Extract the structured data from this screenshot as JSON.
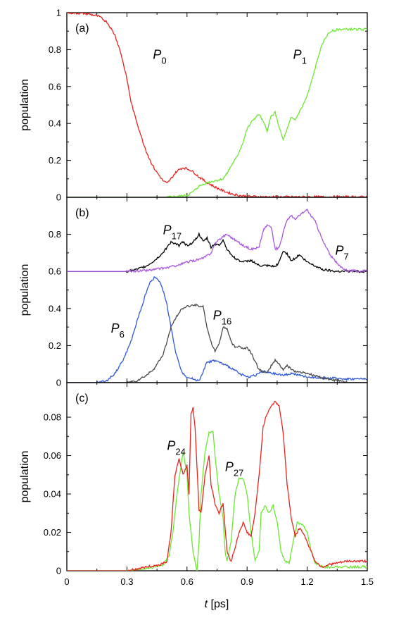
{
  "chart_data": [
    {
      "panel": "(a)",
      "type": "line",
      "xlabel": "",
      "ylabel": "population",
      "xlim": [
        0,
        1.5
      ],
      "ylim": [
        0,
        1
      ],
      "yticks": [
        0,
        0.2,
        0.4,
        0.6,
        0.8,
        1
      ],
      "ytick_labels": [
        "0",
        "0.2",
        "0.4",
        "0.6",
        "0.8",
        "1"
      ],
      "series": [
        {
          "name": "P0",
          "label_main": "P",
          "label_sub": "0",
          "color": "#e8231f",
          "label_pos": [
            0.43,
            0.75
          ],
          "x": [
            0,
            0.1,
            0.16,
            0.2,
            0.24,
            0.27,
            0.3,
            0.32,
            0.34,
            0.36,
            0.38,
            0.4,
            0.42,
            0.44,
            0.46,
            0.48,
            0.5,
            0.52,
            0.54,
            0.56,
            0.58,
            0.6,
            0.62,
            0.64,
            0.66,
            0.7,
            0.74,
            0.78,
            0.82,
            0.86,
            0.9,
            1.0,
            1.5
          ],
          "y": [
            1.0,
            0.995,
            0.98,
            0.95,
            0.88,
            0.78,
            0.64,
            0.52,
            0.44,
            0.37,
            0.3,
            0.24,
            0.19,
            0.15,
            0.12,
            0.09,
            0.075,
            0.1,
            0.13,
            0.15,
            0.16,
            0.155,
            0.145,
            0.13,
            0.11,
            0.08,
            0.055,
            0.035,
            0.02,
            0.01,
            0.005,
            0.002,
            0.002
          ]
        },
        {
          "name": "P1",
          "label_main": "P",
          "label_sub": "1",
          "color": "#6be830",
          "label_pos": [
            1.13,
            0.75
          ],
          "x": [
            0,
            0.4,
            0.5,
            0.55,
            0.6,
            0.63,
            0.66,
            0.7,
            0.74,
            0.78,
            0.8,
            0.82,
            0.85,
            0.88,
            0.9,
            0.93,
            0.96,
            0.98,
            1.0,
            1.02,
            1.04,
            1.06,
            1.08,
            1.1,
            1.12,
            1.14,
            1.16,
            1.18,
            1.2,
            1.22,
            1.24,
            1.26,
            1.28,
            1.3,
            1.32,
            1.36,
            1.4,
            1.5
          ],
          "y": [
            0,
            0,
            0,
            0.005,
            0.01,
            0.03,
            0.06,
            0.08,
            0.09,
            0.1,
            0.13,
            0.17,
            0.22,
            0.3,
            0.37,
            0.42,
            0.45,
            0.41,
            0.36,
            0.44,
            0.46,
            0.38,
            0.31,
            0.37,
            0.43,
            0.42,
            0.46,
            0.5,
            0.55,
            0.62,
            0.7,
            0.78,
            0.84,
            0.88,
            0.9,
            0.91,
            0.91,
            0.91
          ]
        }
      ]
    },
    {
      "panel": "(b)",
      "type": "line",
      "xlabel": "",
      "ylabel": "population",
      "xlim": [
        0,
        1.5
      ],
      "ylim": [
        0,
        1.0
      ],
      "yticks": [
        0,
        0.2,
        0.4,
        0.6,
        0.8
      ],
      "ytick_labels": [
        "0",
        "0.2",
        "0.4",
        "0.6",
        "0.8"
      ],
      "note": "Upper curves P17 and P7 are drawn with a vertical offset of 0.6",
      "offset_upper": 0.6,
      "series": [
        {
          "name": "P17",
          "label_main": "P",
          "label_sub": "17",
          "color": "#000000",
          "offset": 0.6,
          "label_pos": [
            0.48,
            0.8
          ],
          "x": [
            0,
            0.3,
            0.35,
            0.4,
            0.44,
            0.48,
            0.5,
            0.52,
            0.54,
            0.56,
            0.58,
            0.6,
            0.62,
            0.64,
            0.66,
            0.68,
            0.7,
            0.72,
            0.74,
            0.76,
            0.78,
            0.8,
            0.84,
            0.88,
            0.92,
            0.96,
            1.0,
            1.04,
            1.06,
            1.08,
            1.1,
            1.12,
            1.14,
            1.16,
            1.18,
            1.2,
            1.24,
            1.28,
            1.34,
            1.5
          ],
          "y": [
            0,
            0,
            0.01,
            0.03,
            0.06,
            0.1,
            0.13,
            0.16,
            0.15,
            0.14,
            0.16,
            0.14,
            0.15,
            0.17,
            0.2,
            0.16,
            0.18,
            0.13,
            0.15,
            0.14,
            0.17,
            0.12,
            0.07,
            0.05,
            0.06,
            0.03,
            0.03,
            0.025,
            0.05,
            0.11,
            0.095,
            0.06,
            0.07,
            0.09,
            0.07,
            0.05,
            0.03,
            0.01,
            0.002,
            0
          ]
        },
        {
          "name": "P7",
          "label_main": "P",
          "label_sub": "7",
          "color": "#a855e0",
          "offset": 0.6,
          "label_pos": [
            1.34,
            0.69
          ],
          "x": [
            0,
            0.3,
            0.4,
            0.5,
            0.56,
            0.6,
            0.64,
            0.68,
            0.72,
            0.74,
            0.76,
            0.78,
            0.8,
            0.84,
            0.88,
            0.92,
            0.96,
            0.98,
            1.0,
            1.02,
            1.04,
            1.06,
            1.08,
            1.1,
            1.12,
            1.14,
            1.16,
            1.18,
            1.2,
            1.22,
            1.24,
            1.28,
            1.32,
            1.36,
            1.4,
            1.5
          ],
          "y": [
            0,
            0,
            0.005,
            0.02,
            0.035,
            0.05,
            0.06,
            0.07,
            0.1,
            0.15,
            0.17,
            0.19,
            0.2,
            0.17,
            0.14,
            0.12,
            0.13,
            0.22,
            0.25,
            0.24,
            0.12,
            0.13,
            0.21,
            0.28,
            0.3,
            0.28,
            0.3,
            0.32,
            0.33,
            0.3,
            0.27,
            0.16,
            0.08,
            0.03,
            0.005,
            0
          ]
        },
        {
          "name": "P6",
          "label_main": "P",
          "label_sub": "6",
          "color": "#2e58d8",
          "label_pos": [
            0.22,
            0.27
          ],
          "x": [
            0,
            0.15,
            0.2,
            0.24,
            0.28,
            0.32,
            0.35,
            0.38,
            0.4,
            0.42,
            0.44,
            0.46,
            0.48,
            0.5,
            0.52,
            0.54,
            0.56,
            0.58,
            0.6,
            0.63,
            0.66,
            0.68,
            0.7,
            0.74,
            0.78,
            0.82,
            0.86,
            0.9,
            0.94,
            0.98,
            1.02,
            1.08,
            1.12,
            1.2,
            1.3,
            1.4,
            1.5
          ],
          "y": [
            0,
            0,
            0.01,
            0.05,
            0.12,
            0.22,
            0.33,
            0.43,
            0.5,
            0.55,
            0.57,
            0.55,
            0.5,
            0.42,
            0.3,
            0.18,
            0.1,
            0.05,
            0.03,
            0.02,
            0.01,
            0.06,
            0.11,
            0.12,
            0.1,
            0.08,
            0.05,
            0.03,
            0.04,
            0.06,
            0.05,
            0.04,
            0.05,
            0.03,
            0.025,
            0.02,
            0.02
          ]
        },
        {
          "name": "P16",
          "label_main": "P",
          "label_sub": "16",
          "color": "#4a4a4a",
          "label_pos": [
            0.73,
            0.34
          ],
          "x": [
            0,
            0.3,
            0.35,
            0.4,
            0.44,
            0.48,
            0.5,
            0.52,
            0.54,
            0.56,
            0.58,
            0.6,
            0.64,
            0.68,
            0.7,
            0.72,
            0.74,
            0.76,
            0.78,
            0.8,
            0.82,
            0.84,
            0.86,
            0.88,
            0.9,
            0.92,
            0.96,
            1.0,
            1.02,
            1.04,
            1.06,
            1.08,
            1.1,
            1.14,
            1.2,
            1.26,
            1.3,
            1.36,
            1.4,
            1.5
          ],
          "y": [
            0,
            0,
            0.01,
            0.04,
            0.08,
            0.15,
            0.22,
            0.3,
            0.34,
            0.38,
            0.4,
            0.41,
            0.42,
            0.41,
            0.3,
            0.22,
            0.17,
            0.21,
            0.3,
            0.29,
            0.22,
            0.19,
            0.2,
            0.18,
            0.19,
            0.16,
            0.07,
            0.05,
            0.09,
            0.12,
            0.1,
            0.07,
            0.09,
            0.06,
            0.05,
            0.03,
            0.02,
            0.01,
            0,
            0
          ]
        }
      ]
    },
    {
      "panel": "(c)",
      "type": "line",
      "xlabel": "t [ps]",
      "ylabel": "population",
      "xlim": [
        0,
        1.5
      ],
      "ylim": [
        0,
        0.098
      ],
      "yticks": [
        0,
        0.02,
        0.04,
        0.06,
        0.08
      ],
      "ytick_labels": [
        "0",
        "0.02",
        "0.04",
        "0.06",
        "0.08"
      ],
      "xticks": [
        0,
        0.3,
        0.6,
        0.9,
        1.2,
        1.5
      ],
      "xtick_labels": [
        "0",
        "0.3",
        "0.6",
        "0.9",
        "1.2",
        "1.5"
      ],
      "series": [
        {
          "name": "P24",
          "label_main": "P",
          "label_sub": "24",
          "color": "#6be830",
          "label_pos": [
            0.5,
            0.063
          ],
          "x": [
            0,
            0.3,
            0.4,
            0.48,
            0.51,
            0.53,
            0.55,
            0.57,
            0.58,
            0.6,
            0.61,
            0.63,
            0.64,
            0.65,
            0.66,
            0.67,
            0.69,
            0.71,
            0.73,
            0.74,
            0.76,
            0.78,
            0.79,
            0.8,
            0.82,
            0.84,
            0.86,
            0.88,
            0.9,
            0.92,
            0.94,
            0.96,
            0.97,
            0.99,
            1.01,
            1.03,
            1.05,
            1.07,
            1.09,
            1.11,
            1.13,
            1.15,
            1.18,
            1.2,
            1.22,
            1.24,
            1.26,
            1.28,
            1.3,
            1.35,
            1.4,
            1.5
          ],
          "y": [
            0,
            0,
            0.001,
            0.003,
            0.008,
            0.02,
            0.04,
            0.055,
            0.062,
            0.05,
            0.03,
            0.01,
            0.005,
            0,
            0.015,
            0.04,
            0.062,
            0.072,
            0.072,
            0.06,
            0.04,
            0.028,
            0.01,
            0.005,
            0.015,
            0.04,
            0.048,
            0.048,
            0.04,
            0.02,
            0.005,
            0.01,
            0.03,
            0.034,
            0.03,
            0.034,
            0.025,
            0.01,
            0.005,
            0.004,
            0.015,
            0.025,
            0.024,
            0.02,
            0.01,
            0.004,
            0.003,
            0.002,
            0.002,
            0.002,
            0.002,
            0.002
          ]
        },
        {
          "name": "P27",
          "label_main": "P",
          "label_sub": "27",
          "color": "#e8231f",
          "label_pos": [
            0.79,
            0.052
          ],
          "x": [
            0,
            0.3,
            0.4,
            0.46,
            0.5,
            0.52,
            0.54,
            0.56,
            0.58,
            0.6,
            0.61,
            0.62,
            0.63,
            0.64,
            0.66,
            0.67,
            0.69,
            0.71,
            0.72,
            0.74,
            0.76,
            0.78,
            0.8,
            0.82,
            0.84,
            0.86,
            0.88,
            0.9,
            0.92,
            0.94,
            0.96,
            0.98,
            1.0,
            1.02,
            1.04,
            1.06,
            1.08,
            1.1,
            1.12,
            1.14,
            1.16,
            1.18,
            1.2,
            1.22,
            1.24,
            1.26,
            1.28,
            1.3,
            1.35,
            1.4,
            1.5
          ],
          "y": [
            0,
            0,
            0.002,
            0.003,
            0.005,
            0.02,
            0.05,
            0.058,
            0.05,
            0.055,
            0.04,
            0.082,
            0.085,
            0.075,
            0.032,
            0.03,
            0.05,
            0.06,
            0.045,
            0.035,
            0.03,
            0.035,
            0.01,
            0.005,
            0.012,
            0.02,
            0.025,
            0.02,
            0.018,
            0.03,
            0.05,
            0.075,
            0.082,
            0.086,
            0.088,
            0.086,
            0.072,
            0.045,
            0.028,
            0.018,
            0.022,
            0.02,
            0.015,
            0.01,
            0.005,
            0.003,
            0.002,
            0.003,
            0.004,
            0.005,
            0.005
          ]
        }
      ]
    }
  ]
}
